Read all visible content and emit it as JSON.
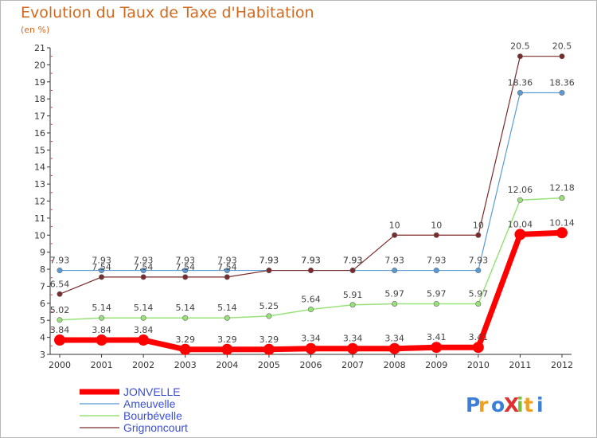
{
  "title": "Evolution du Taux de Taxe d'Habitation",
  "subtitle": "(en %)",
  "logo": "ProXiti",
  "chart_data": {
    "type": "line",
    "x": [
      2000,
      2001,
      2002,
      2003,
      2004,
      2005,
      2006,
      2007,
      2008,
      2009,
      2010,
      2011,
      2012
    ],
    "xlim": [
      2000,
      2012
    ],
    "ylim": [
      3,
      21
    ],
    "yticks": [
      3,
      4,
      5,
      6,
      7,
      8,
      9,
      10,
      11,
      12,
      13,
      14,
      15,
      16,
      17,
      18,
      19,
      20,
      21
    ],
    "grid": false,
    "legend_position": "bottom-left",
    "series": [
      {
        "name": "JONVELLE",
        "color": "#ff0000",
        "width": 7,
        "marker": 7,
        "values": [
          3.84,
          3.84,
          3.84,
          3.29,
          3.29,
          3.29,
          3.34,
          3.34,
          3.34,
          3.41,
          3.41,
          10.04,
          10.14
        ],
        "labels": [
          "3.84",
          "3.84",
          "3.84",
          "3.29",
          "3.29",
          "3.29",
          "3.34",
          "3.34",
          "3.34",
          "3.41",
          "3.41",
          "10.04",
          "10.14"
        ]
      },
      {
        "name": "Ameuvelle",
        "color": "#5b9bd5",
        "width": 1.2,
        "marker": 3.2,
        "values": [
          7.93,
          7.93,
          7.93,
          7.93,
          7.93,
          7.93,
          7.93,
          7.93,
          7.93,
          7.93,
          7.93,
          18.36,
          18.36
        ],
        "labels": [
          "7.93",
          "7.93",
          "7.93",
          "7.93",
          "7.93",
          "7.93",
          "7.93",
          "7.93",
          "7.93",
          "7.93",
          "7.93",
          "18.36",
          "18.36"
        ]
      },
      {
        "name": "Bourbévelle",
        "color": "#99e27a",
        "width": 1.5,
        "marker": 3.2,
        "values": [
          5.02,
          5.14,
          5.14,
          5.14,
          5.14,
          5.25,
          5.64,
          5.91,
          5.97,
          5.97,
          5.97,
          12.06,
          12.18
        ],
        "labels": [
          "5.02",
          "5.14",
          "5.14",
          "5.14",
          "5.14",
          "5.25",
          "5.64",
          "5.91",
          "5.97",
          "5.97",
          "5.97",
          "12.06",
          "12.18"
        ]
      },
      {
        "name": "Grignoncourt",
        "color": "#7a2a2a",
        "width": 1.2,
        "marker": 3.2,
        "values": [
          6.54,
          7.54,
          7.54,
          7.54,
          7.54,
          7.93,
          7.93,
          7.93,
          10,
          10,
          10,
          20.5,
          20.5
        ],
        "labels": [
          "6.54",
          "7.54",
          "7.54",
          "7.54",
          "7.54",
          "7.93",
          "7.93",
          "7.93",
          "10",
          "10",
          "10",
          "20.5",
          "20.5"
        ]
      }
    ]
  }
}
